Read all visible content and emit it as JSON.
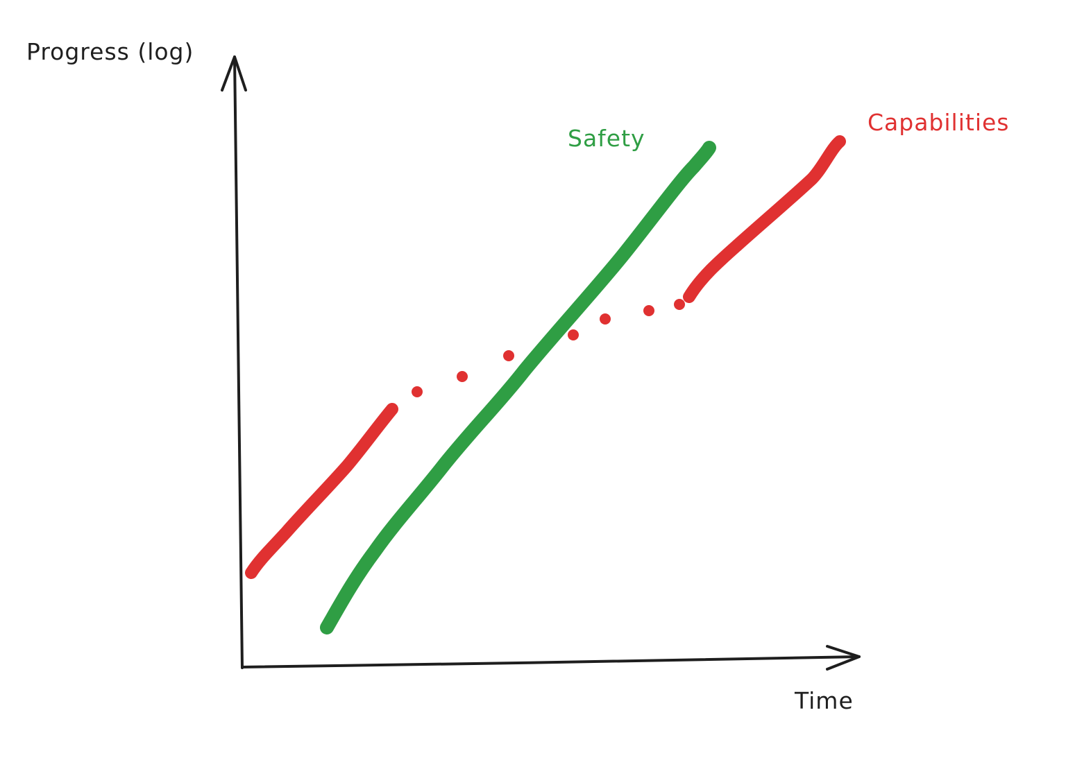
{
  "chart_data": {
    "type": "line",
    "xlabel": "Time",
    "ylabel": "Progress (log)",
    "grid": false,
    "colors": {
      "axis": "#1e1e1e",
      "safety": "#2f9e44",
      "capabilities": "#e03131"
    },
    "series": [
      {
        "name": "Safety",
        "color": "#2f9e44",
        "style": "solid"
      },
      {
        "name": "Capabilities",
        "color": "#e03131",
        "style": "solid with dotted gap"
      }
    ]
  }
}
